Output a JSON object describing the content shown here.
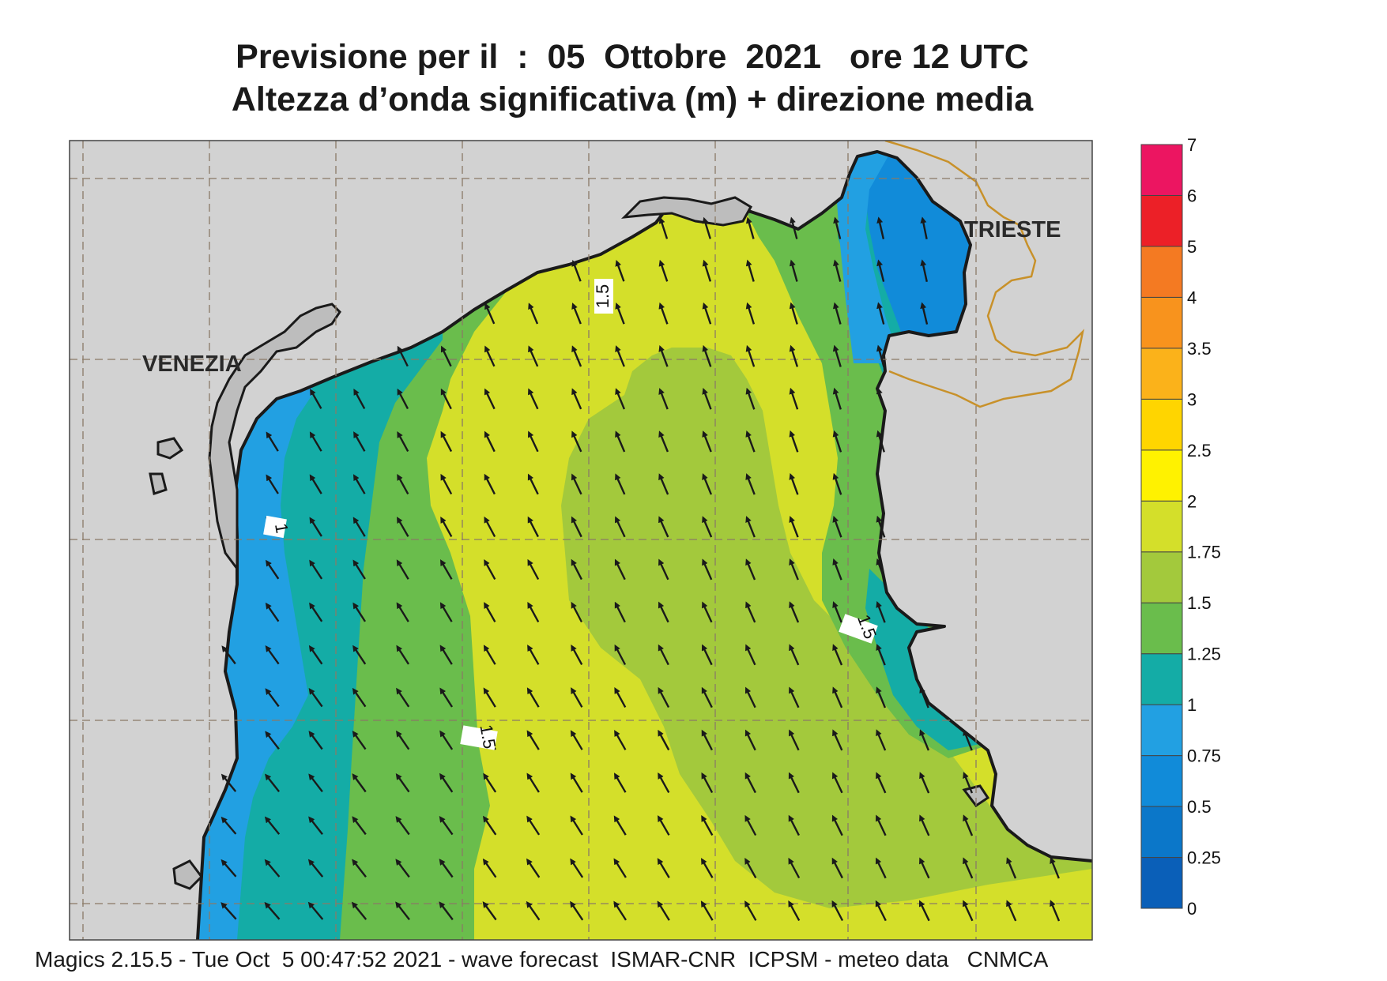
{
  "title": {
    "line1": "Previsione per il  :  05  Ottobre  2021   ore 12 UTC",
    "line2": "Altezza d’onda significativa (m) + direzione media"
  },
  "cities": [
    {
      "name": "VENEZIA"
    },
    {
      "name": "TRIESTE"
    }
  ],
  "contour_labels": [
    "1.5",
    "1",
    "1.5",
    "1.5"
  ],
  "legend": {
    "levels": [
      "0",
      "0.25",
      "0.5",
      "0.75",
      "1",
      "1.25",
      "1.5",
      "1.75",
      "2",
      "2.5",
      "3",
      "3.5",
      "4",
      "5",
      "6",
      "7"
    ],
    "colors": [
      "#0a5fb8",
      "#0b77c9",
      "#118bd9",
      "#22a0e2",
      "#14aca6",
      "#6abd4c",
      "#a3c93c",
      "#d4df2a",
      "#fff200",
      "#ffd500",
      "#fbb21a",
      "#f8931d",
      "#f47a22",
      "#ec2027",
      "#ec1561"
    ]
  },
  "colors": {
    "land": "#d2d2d2",
    "grid": "#8a7a66",
    "border": "#c8912a",
    "coast": "#1a1a1a"
  },
  "footer": "Magics 2.15.5 - Tue Oct  5 00:47:52 2021 - wave forecast  ISMAR-CNR  ICPSM - meteo data   CNMCA"
}
